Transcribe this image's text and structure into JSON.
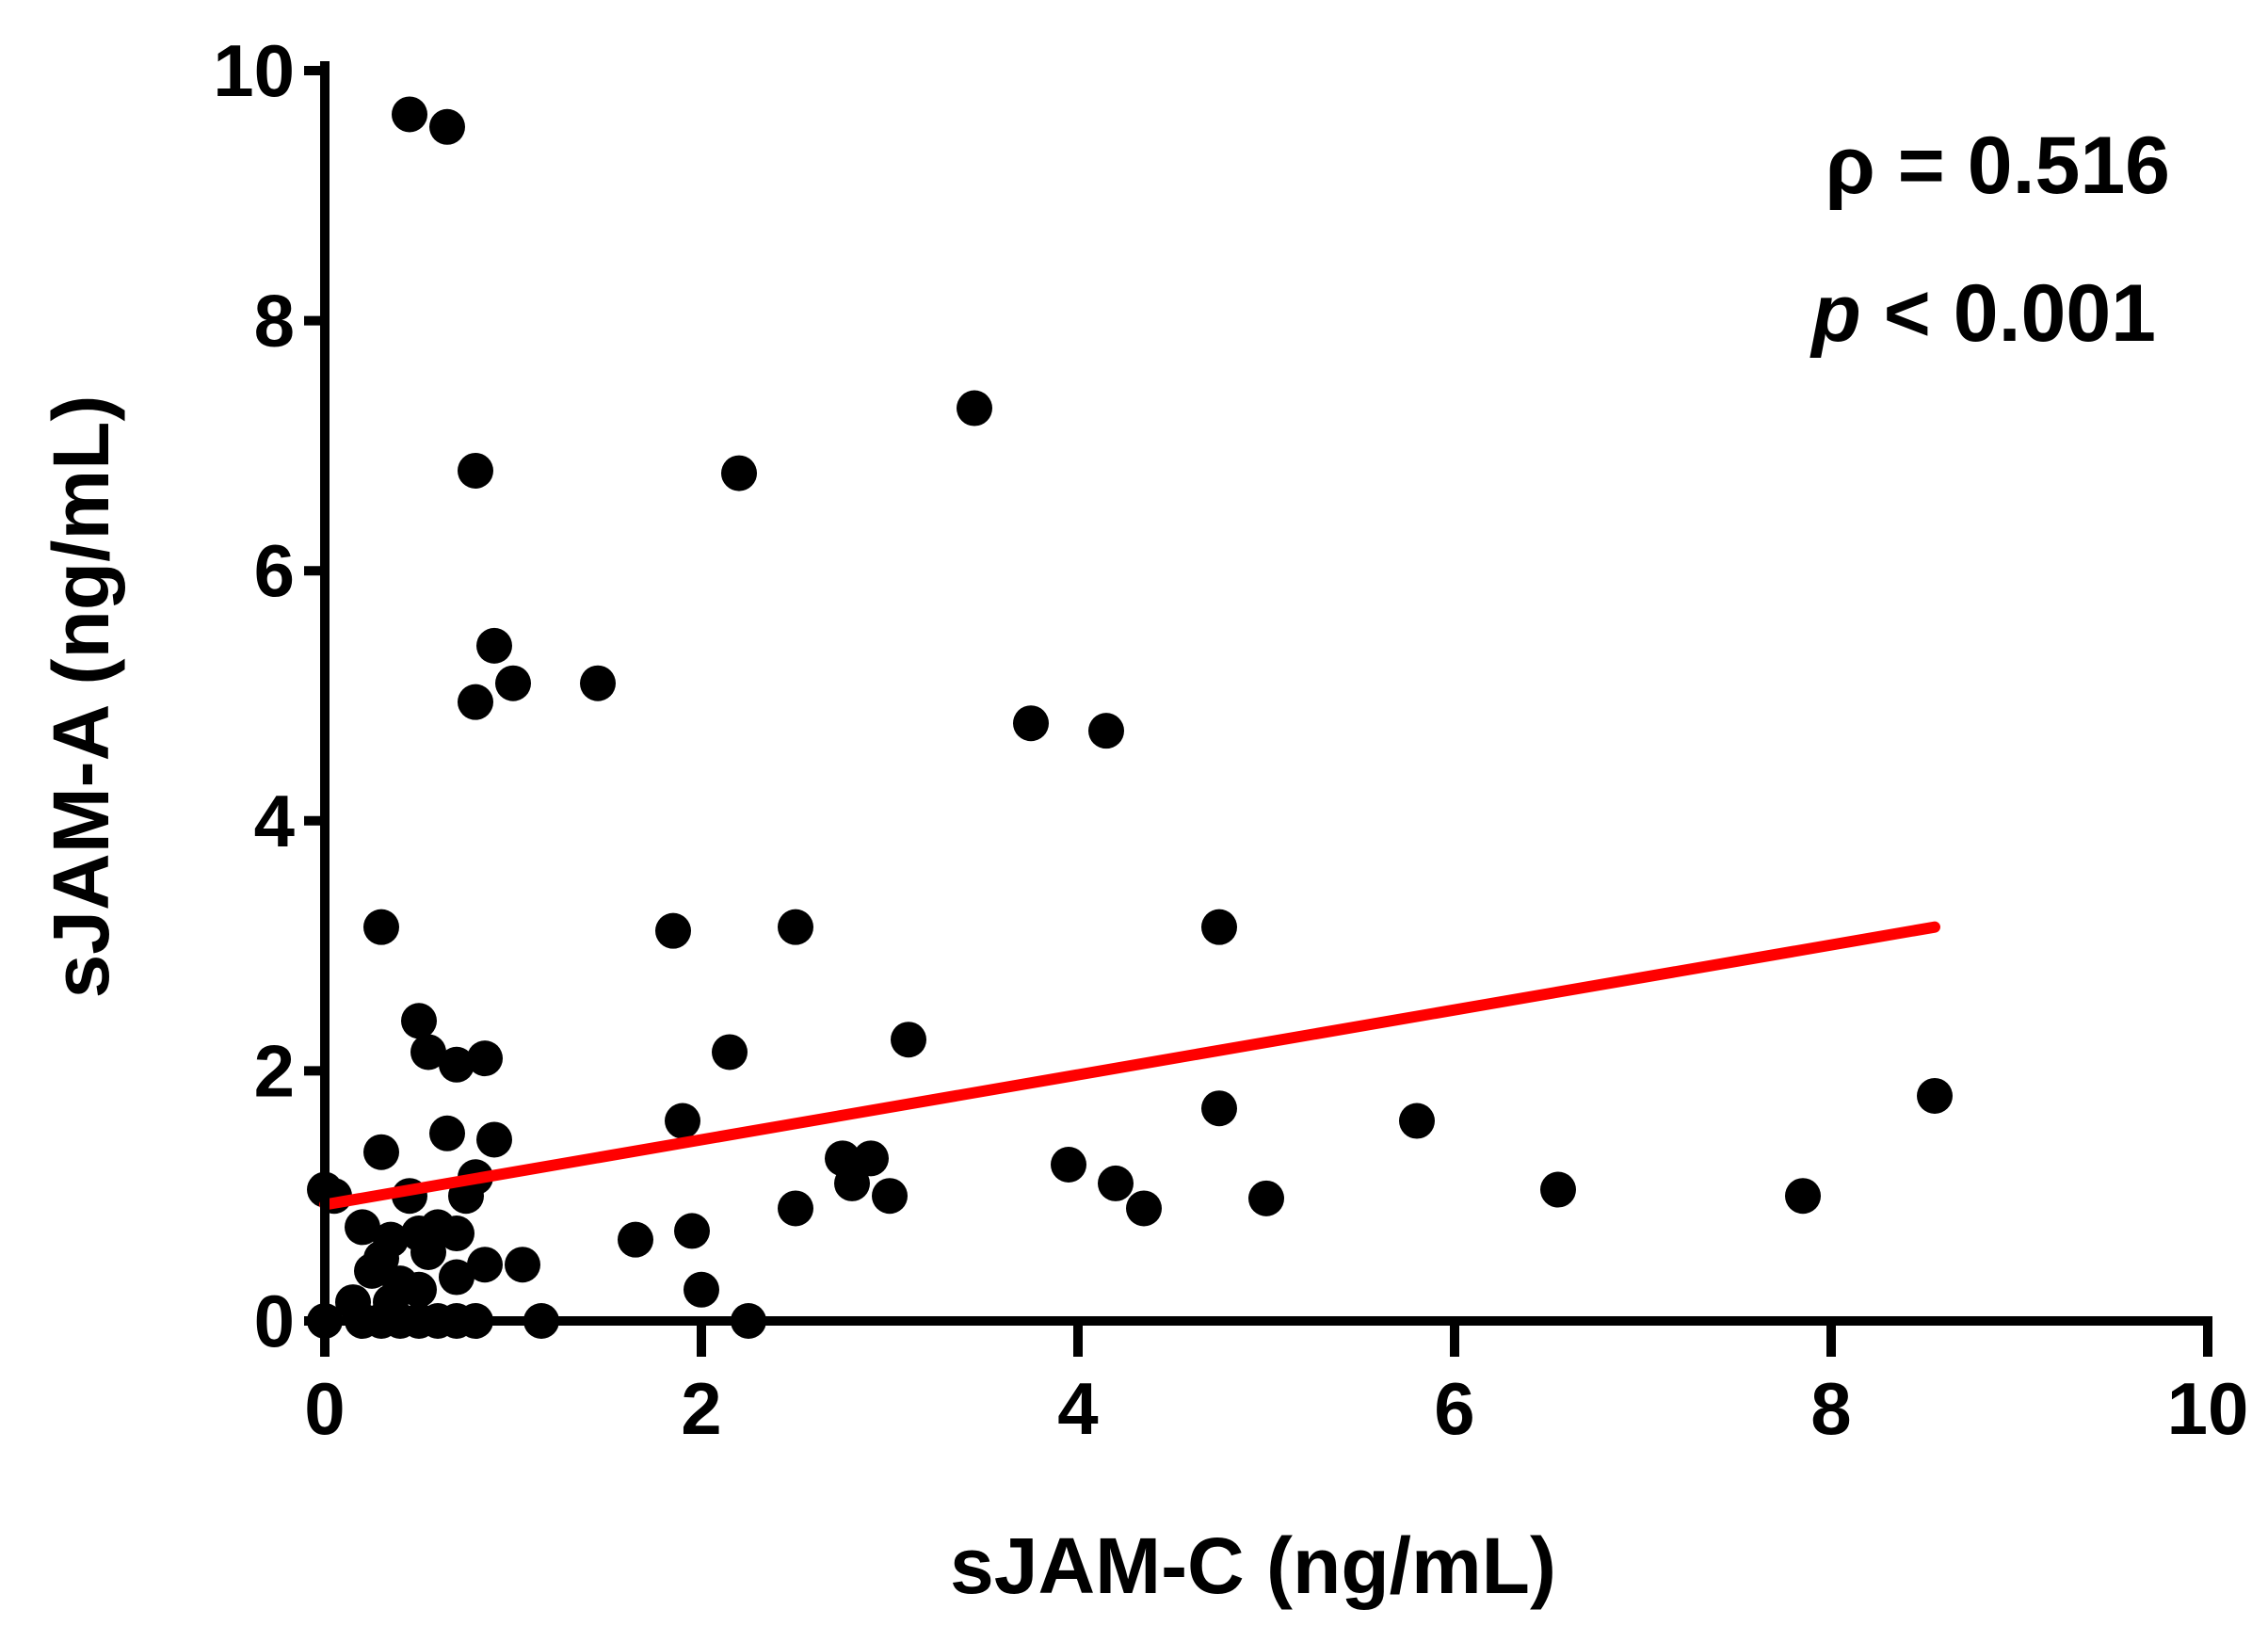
{
  "chart_data": {
    "type": "scatter",
    "title": "",
    "xlabel": "sJAM-C (ng/mL)",
    "ylabel": "sJAM-A (ng/mL)",
    "xlim": [
      0,
      10
    ],
    "ylim": [
      0,
      10
    ],
    "xticks": [
      "0",
      "2",
      "4",
      "6",
      "8",
      "10"
    ],
    "yticks": [
      "0",
      "2",
      "4",
      "6",
      "8",
      "10"
    ],
    "grid": false,
    "point_color": "#000000",
    "points": [
      [
        0.45,
        9.65
      ],
      [
        0.65,
        9.55
      ],
      [
        0.8,
        6.8
      ],
      [
        2.2,
        6.78
      ],
      [
        3.45,
        7.3
      ],
      [
        0.9,
        5.4
      ],
      [
        0.8,
        4.95
      ],
      [
        1.0,
        5.1
      ],
      [
        1.45,
        5.1
      ],
      [
        3.75,
        4.78
      ],
      [
        4.15,
        4.72
      ],
      [
        0.3,
        3.15
      ],
      [
        1.85,
        3.12
      ],
      [
        2.5,
        3.15
      ],
      [
        4.75,
        3.15
      ],
      [
        0.5,
        2.4
      ],
      [
        0.55,
        2.15
      ],
      [
        0.7,
        2.05
      ],
      [
        0.85,
        2.1
      ],
      [
        2.15,
        2.15
      ],
      [
        3.1,
        2.25
      ],
      [
        0.3,
        1.35
      ],
      [
        0.65,
        1.5
      ],
      [
        0.9,
        1.45
      ],
      [
        0.8,
        1.15
      ],
      [
        1.9,
        1.6
      ],
      [
        4.75,
        1.7
      ],
      [
        5.8,
        1.6
      ],
      [
        8.55,
        1.8
      ],
      [
        2.75,
        1.3
      ],
      [
        2.9,
        1.3
      ],
      [
        2.8,
        1.1
      ],
      [
        3.0,
        1.0
      ],
      [
        3.95,
        1.25
      ],
      [
        4.2,
        1.1
      ],
      [
        4.35,
        0.9
      ],
      [
        5.0,
        0.98
      ],
      [
        6.55,
        1.05
      ],
      [
        7.85,
        1.0
      ],
      [
        2.5,
        0.9
      ],
      [
        0.0,
        1.05
      ],
      [
        0.05,
        1.0
      ],
      [
        0.2,
        0.75
      ],
      [
        0.35,
        0.65
      ],
      [
        0.3,
        0.5
      ],
      [
        0.45,
        1.0
      ],
      [
        0.5,
        0.7
      ],
      [
        0.6,
        0.75
      ],
      [
        0.7,
        0.7
      ],
      [
        0.75,
        1.0
      ],
      [
        0.4,
        0.3
      ],
      [
        0.55,
        0.55
      ],
      [
        0.7,
        0.35
      ],
      [
        0.85,
        0.45
      ],
      [
        1.05,
        0.45
      ],
      [
        1.65,
        0.65
      ],
      [
        1.95,
        0.72
      ],
      [
        2.0,
        0.25
      ],
      [
        0.15,
        0.15
      ],
      [
        0.25,
        0.4
      ],
      [
        0.35,
        0.15
      ],
      [
        0.5,
        0.25
      ],
      [
        0.0,
        0.0
      ],
      [
        0.2,
        0.0
      ],
      [
        0.3,
        0.0
      ],
      [
        0.4,
        0.0
      ],
      [
        0.5,
        0.0
      ],
      [
        0.6,
        0.0
      ],
      [
        0.7,
        0.0
      ],
      [
        0.8,
        0.0
      ],
      [
        1.15,
        0.0
      ],
      [
        2.25,
        0.0
      ]
    ],
    "regression": {
      "color": "#ff0000",
      "x": [
        0.0,
        8.55
      ],
      "y": [
        0.93,
        3.15
      ]
    },
    "annotations": {
      "rho_line": "ρ = 0.516",
      "p_symbol": "p",
      "p_rest": " < 0.001"
    }
  }
}
